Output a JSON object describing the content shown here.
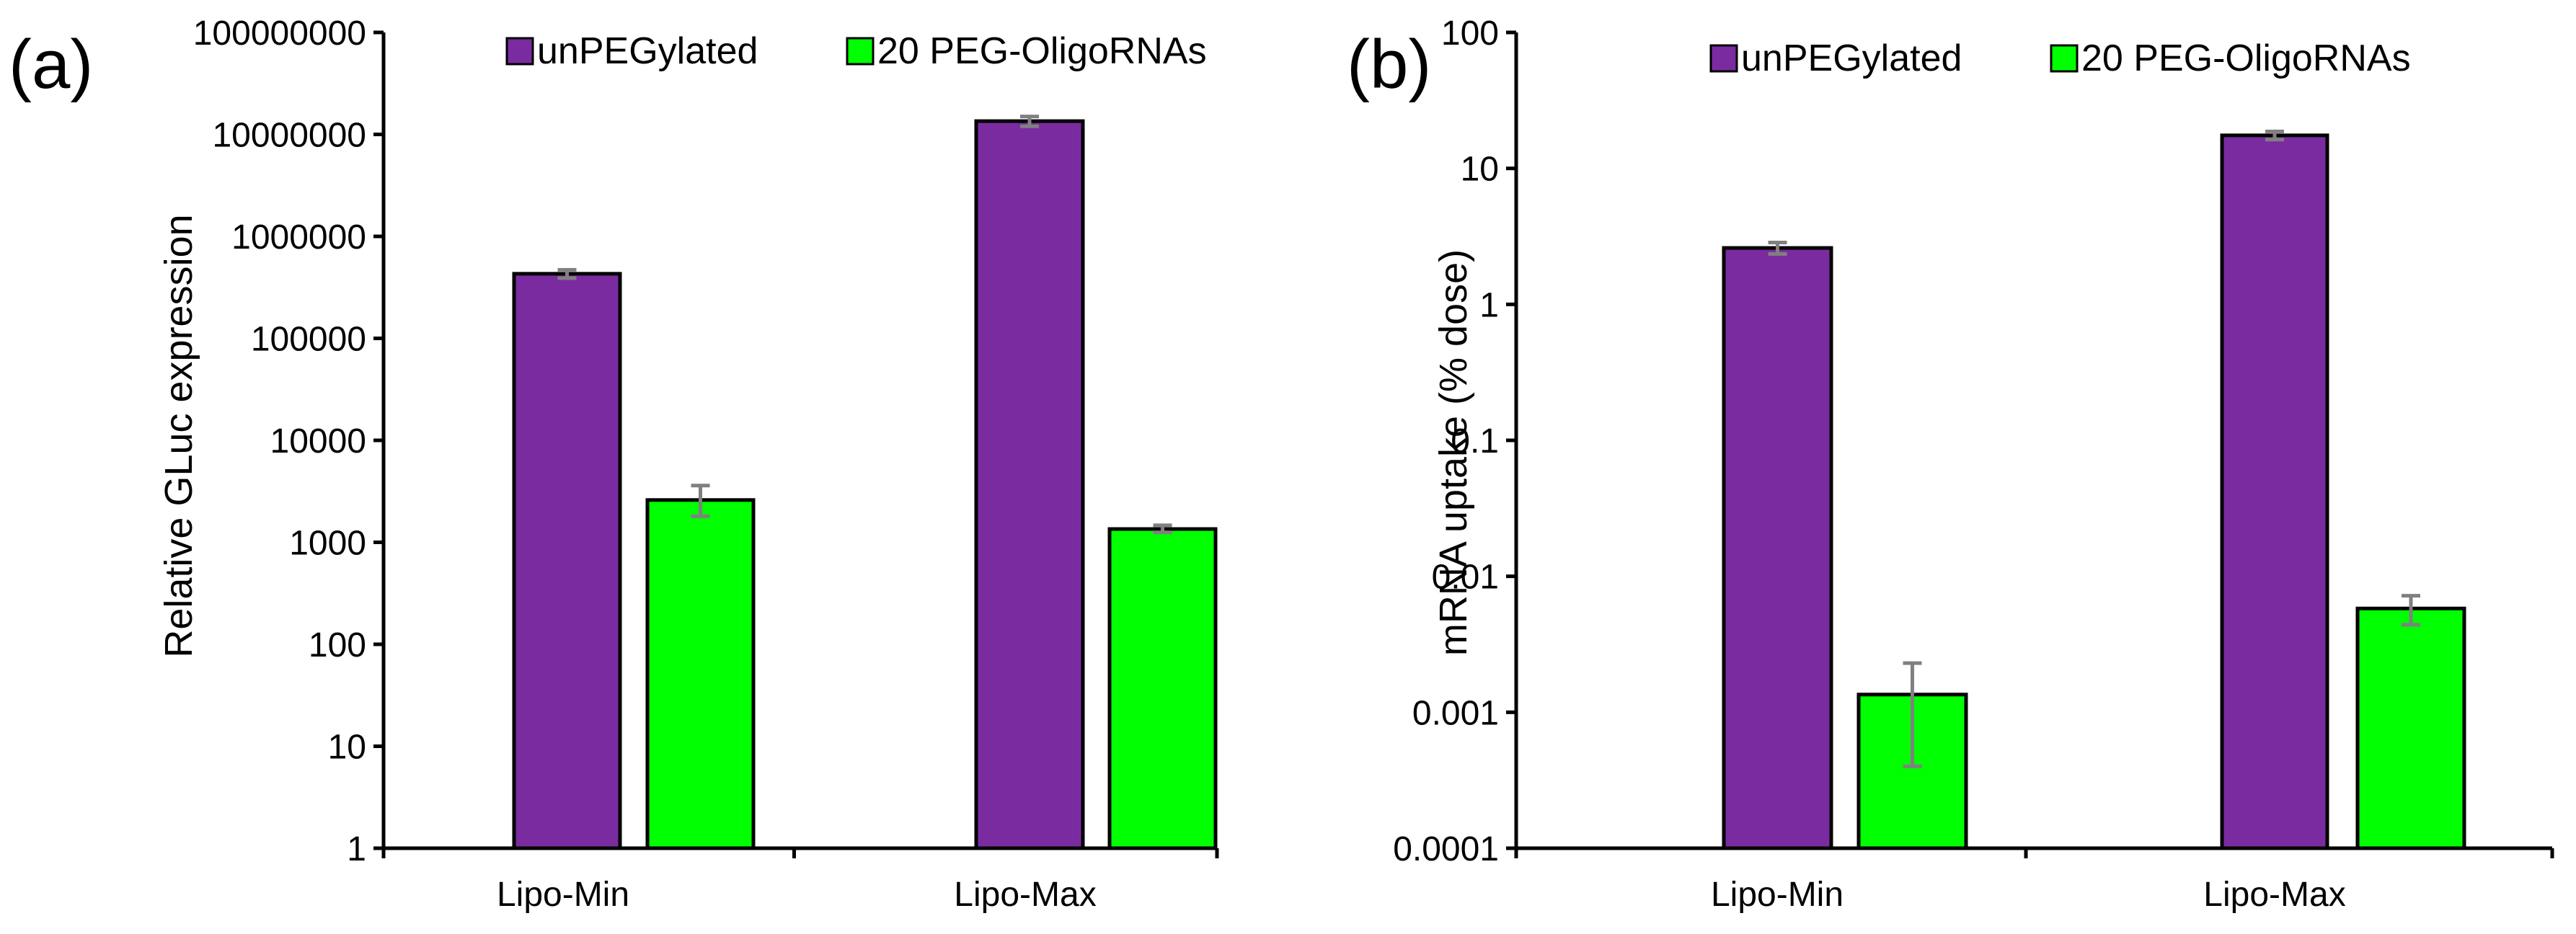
{
  "chart_data": [
    {
      "panel_label": "(a)",
      "type": "bar",
      "scale": "log",
      "ylabel": "Relative GLuc expression",
      "xlabel": "",
      "ylim": [
        1,
        100000000
      ],
      "yticks": [
        "1",
        "10",
        "100",
        "1000",
        "10000",
        "100000",
        "1000000",
        "10000000",
        "100000000"
      ],
      "categories": [
        "Lipo-Min",
        "Lipo-Max"
      ],
      "legend_position": "top",
      "grid": false,
      "series": [
        {
          "name": "unPEGylated",
          "color": "#7B2BA0",
          "values": [
            430000,
            13500000
          ],
          "err_low": [
            390000,
            12000000
          ],
          "err_high": [
            470000,
            15000000
          ]
        },
        {
          "name": "20 PEG-OligoRNAs",
          "color": "#00FF00",
          "values": [
            2600,
            1350
          ],
          "err_low": [
            1800,
            1250
          ],
          "err_high": [
            3600,
            1470
          ]
        }
      ]
    },
    {
      "panel_label": "(b)",
      "type": "bar",
      "scale": "log",
      "ylabel": "mRNA uptake (% dose)",
      "xlabel": "",
      "ylim": [
        0.0001,
        100
      ],
      "yticks": [
        "0.0001",
        "0.001",
        "0.01",
        "0.1",
        "1",
        "10",
        "100"
      ],
      "categories": [
        "Lipo-Min",
        "Lipo-Max"
      ],
      "legend_position": "top",
      "grid": false,
      "series": [
        {
          "name": "unPEGylated",
          "color": "#7B2BA0",
          "values": [
            2.6,
            17.5
          ],
          "err_low": [
            2.35,
            16.3
          ],
          "err_high": [
            2.85,
            18.7
          ]
        },
        {
          "name": "20 PEG-OligoRNAs",
          "color": "#00FF00",
          "values": [
            0.00135,
            0.0058
          ],
          "err_low": [
            0.0004,
            0.0044
          ],
          "err_high": [
            0.0023,
            0.0072
          ]
        }
      ]
    }
  ]
}
